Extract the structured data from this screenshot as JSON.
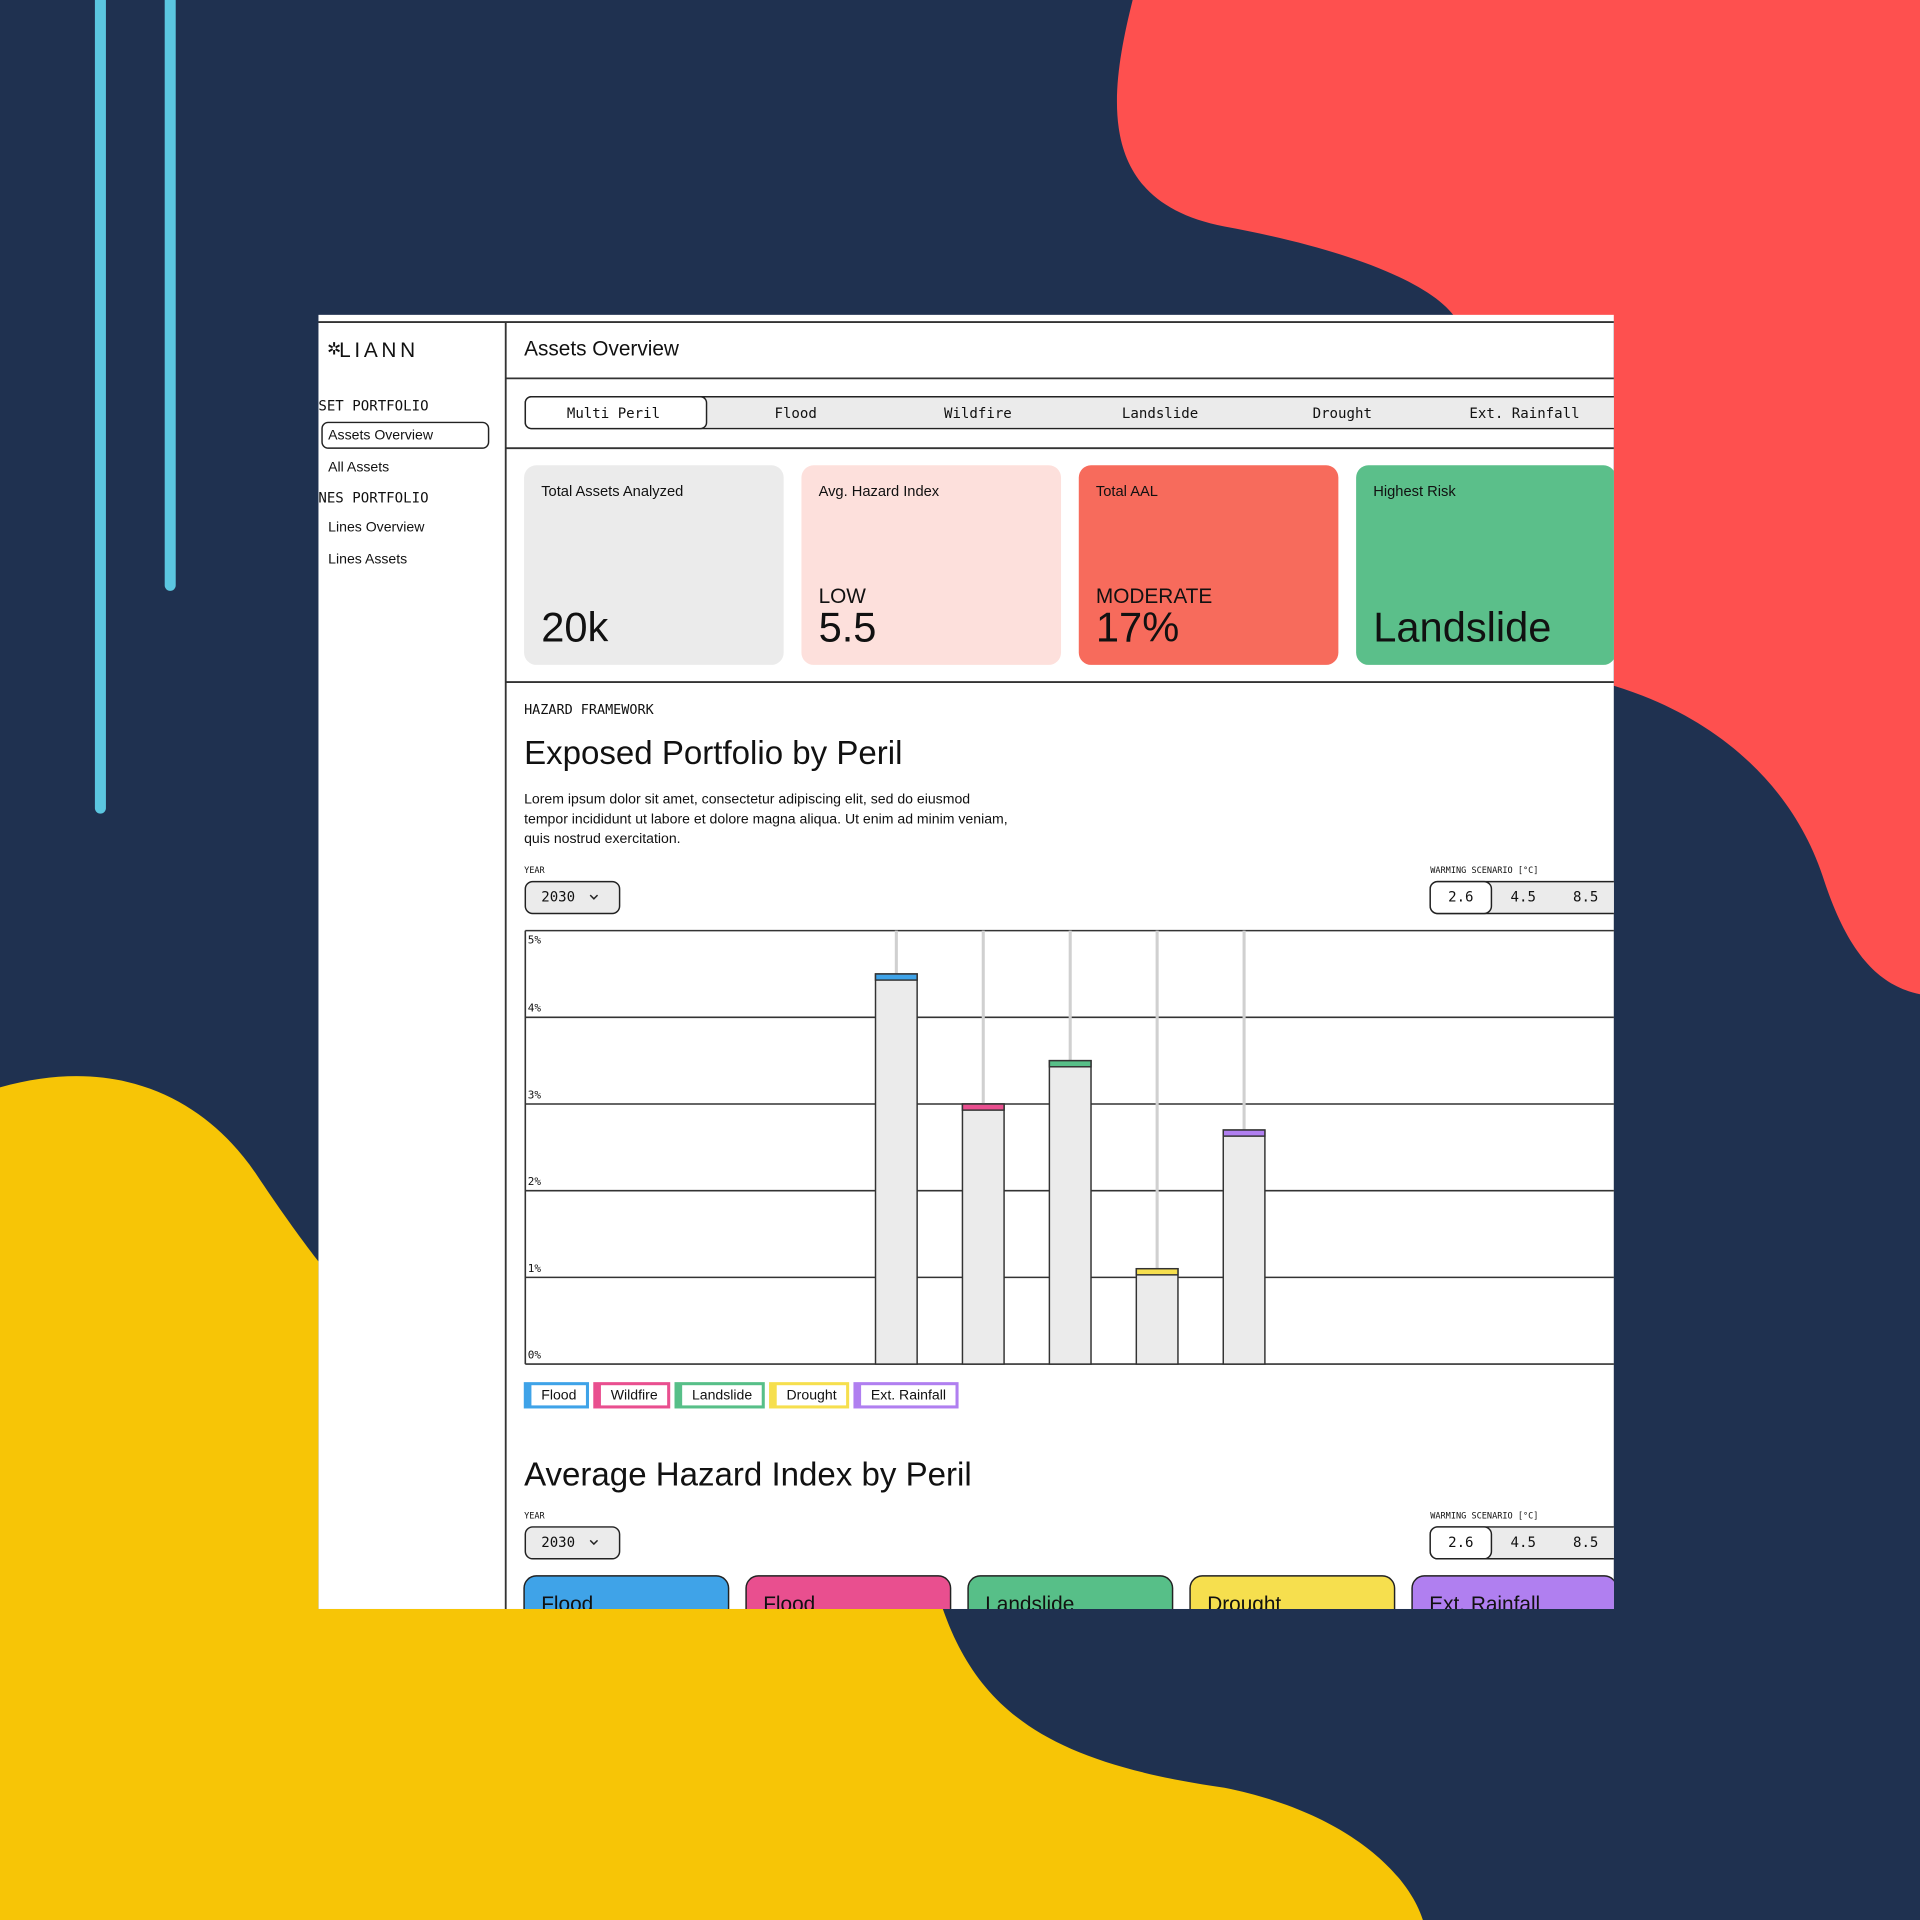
{
  "logo": "LIANN",
  "header": {
    "title": "Assets Overview"
  },
  "sidebar": {
    "sections": [
      {
        "title": "SET PORTFOLIO",
        "items": [
          "Assets Overview",
          "All Assets"
        ]
      },
      {
        "title": "NES PORTFOLIO",
        "items": [
          "Lines Overview",
          "Lines Assets"
        ]
      }
    ]
  },
  "tabs": [
    "Multi Peril",
    "Flood",
    "Wildfire",
    "Landslide",
    "Drought",
    "Ext. Rainfall"
  ],
  "kpis": [
    {
      "label": "Total Assets Analyzed",
      "value": "20k"
    },
    {
      "label": "Avg. Hazard Index",
      "level": "LOW",
      "value": "5.5"
    },
    {
      "label": "Total AAL",
      "level": "MODERATE",
      "value": "17%"
    },
    {
      "label": "Highest Risk",
      "value": "Landslide"
    }
  ],
  "section": {
    "eyebrow": "HAZARD FRAMEWORK",
    "description": [
      "Lorem ipsum dolor sit amet, consectetur adipiscing elit, sed do eiusmod",
      "tempor incididunt ut labore et dolore magna aliqua. Ut enim ad minim veniam,",
      "quis nostrud exercitation."
    ]
  },
  "controls": {
    "year_label": "YEAR",
    "year": "2030",
    "warming_label": "WARMING SCENARIO [°C]",
    "warming_options": [
      "2.6",
      "4.5",
      "8.5"
    ]
  },
  "chart_data": {
    "type": "bar",
    "title": "Exposed Portfolio by Peril",
    "ylim": [
      0,
      5
    ],
    "yticks": [
      {
        "value": 0,
        "label": "0%"
      },
      {
        "value": 1,
        "label": "1%"
      },
      {
        "value": 2,
        "label": "2%"
      },
      {
        "value": 3,
        "label": "3%"
      },
      {
        "value": 4,
        "label": "4%"
      },
      {
        "value": 5,
        "label": "5%"
      }
    ],
    "grid": true,
    "series": [
      {
        "name": "Flood",
        "color": "#3fa3e8",
        "values": [
          4.5
        ]
      },
      {
        "name": "Wildfire",
        "color": "#e94f8f",
        "values": [
          3.0
        ]
      },
      {
        "name": "Landslide",
        "color": "#57bf88",
        "values": [
          3.5
        ]
      },
      {
        "name": "Drought",
        "color": "#f6df4e",
        "values": [
          1.1
        ]
      },
      {
        "name": "Ext. Rainfall",
        "color": "#b07ff0",
        "values": [
          2.7
        ]
      }
    ]
  },
  "hazard_index": {
    "title": "Average Hazard Index by Peril",
    "cards": [
      "Flood",
      "Flood",
      "Landslide",
      "Drought",
      "Ext. Rainfall"
    ]
  }
}
